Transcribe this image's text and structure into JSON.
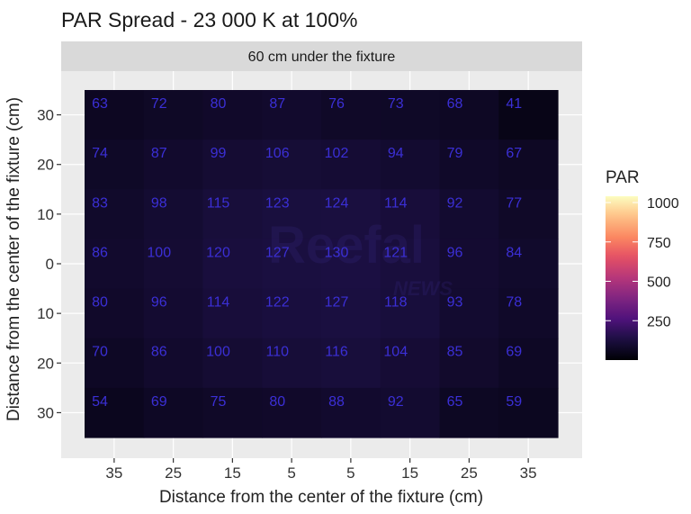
{
  "chart_data": {
    "type": "heatmap",
    "title": "PAR Spread - 23 000 K at 100%",
    "facet_label": "60 cm under the fixture",
    "xlabel": "Distance from the center of the fixture (cm)",
    "ylabel": "Distance from the center of the fixture (cm)",
    "x_tick_labels": [
      "35",
      "25",
      "15",
      "5",
      "5",
      "15",
      "25",
      "35"
    ],
    "y_tick_labels": [
      "30",
      "20",
      "10",
      "0",
      "10",
      "20",
      "30"
    ],
    "values": [
      [
        63,
        72,
        80,
        87,
        76,
        73,
        68,
        41
      ],
      [
        74,
        87,
        99,
        106,
        102,
        94,
        79,
        67
      ],
      [
        83,
        98,
        115,
        123,
        124,
        114,
        92,
        77
      ],
      [
        86,
        100,
        120,
        127,
        130,
        121,
        96,
        84
      ],
      [
        80,
        96,
        114,
        122,
        127,
        118,
        93,
        78
      ],
      [
        70,
        86,
        100,
        110,
        116,
        104,
        85,
        69
      ],
      [
        54,
        69,
        75,
        80,
        88,
        92,
        65,
        59
      ]
    ],
    "legend": {
      "title": "PAR",
      "breaks": [
        250,
        500,
        750,
        1000
      ],
      "range": [
        0,
        1040
      ],
      "colormap": "magma"
    },
    "watermark": "Reefal NEWS",
    "grid": true
  }
}
